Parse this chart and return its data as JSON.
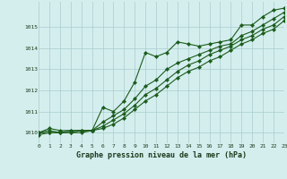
{
  "xlabel": "Graphe pression niveau de la mer (hPa)",
  "bg_color": "#d4eeee",
  "grid_color": "#aacccc",
  "line_color": "#1a5c1a",
  "xlim": [
    0,
    23
  ],
  "ylim": [
    1009.5,
    1016.2
  ],
  "yticks": [
    1010,
    1011,
    1012,
    1013,
    1014,
    1015
  ],
  "xticks": [
    0,
    1,
    2,
    3,
    4,
    5,
    6,
    7,
    8,
    9,
    10,
    11,
    12,
    13,
    14,
    15,
    16,
    17,
    18,
    19,
    20,
    21,
    22,
    23
  ],
  "series": [
    [
      1010.0,
      1010.2,
      1010.1,
      1010.1,
      1010.1,
      1010.1,
      1011.2,
      1011.0,
      1011.5,
      1012.4,
      1013.8,
      1013.6,
      1013.8,
      1014.3,
      1014.2,
      1014.1,
      1014.2,
      1014.3,
      1014.4,
      1015.1,
      1015.1,
      1015.5,
      1015.8,
      1015.9
    ],
    [
      1010.0,
      1010.1,
      1010.0,
      1010.1,
      1010.1,
      1010.1,
      1010.5,
      1010.8,
      1011.1,
      1011.6,
      1012.2,
      1012.5,
      1013.0,
      1013.3,
      1013.5,
      1013.7,
      1013.9,
      1014.1,
      1014.2,
      1014.6,
      1014.8,
      1015.1,
      1015.4,
      1015.7
    ],
    [
      1010.0,
      1010.0,
      1010.0,
      1010.0,
      1010.1,
      1010.1,
      1010.3,
      1010.6,
      1010.9,
      1011.3,
      1011.8,
      1012.1,
      1012.5,
      1012.9,
      1013.2,
      1013.4,
      1013.7,
      1013.9,
      1014.1,
      1014.4,
      1014.6,
      1014.9,
      1015.1,
      1015.5
    ],
    [
      1009.9,
      1010.0,
      1010.0,
      1010.0,
      1010.0,
      1010.1,
      1010.2,
      1010.4,
      1010.7,
      1011.1,
      1011.5,
      1011.8,
      1012.2,
      1012.6,
      1012.9,
      1013.1,
      1013.4,
      1013.6,
      1013.9,
      1014.2,
      1014.4,
      1014.7,
      1014.9,
      1015.3
    ]
  ]
}
